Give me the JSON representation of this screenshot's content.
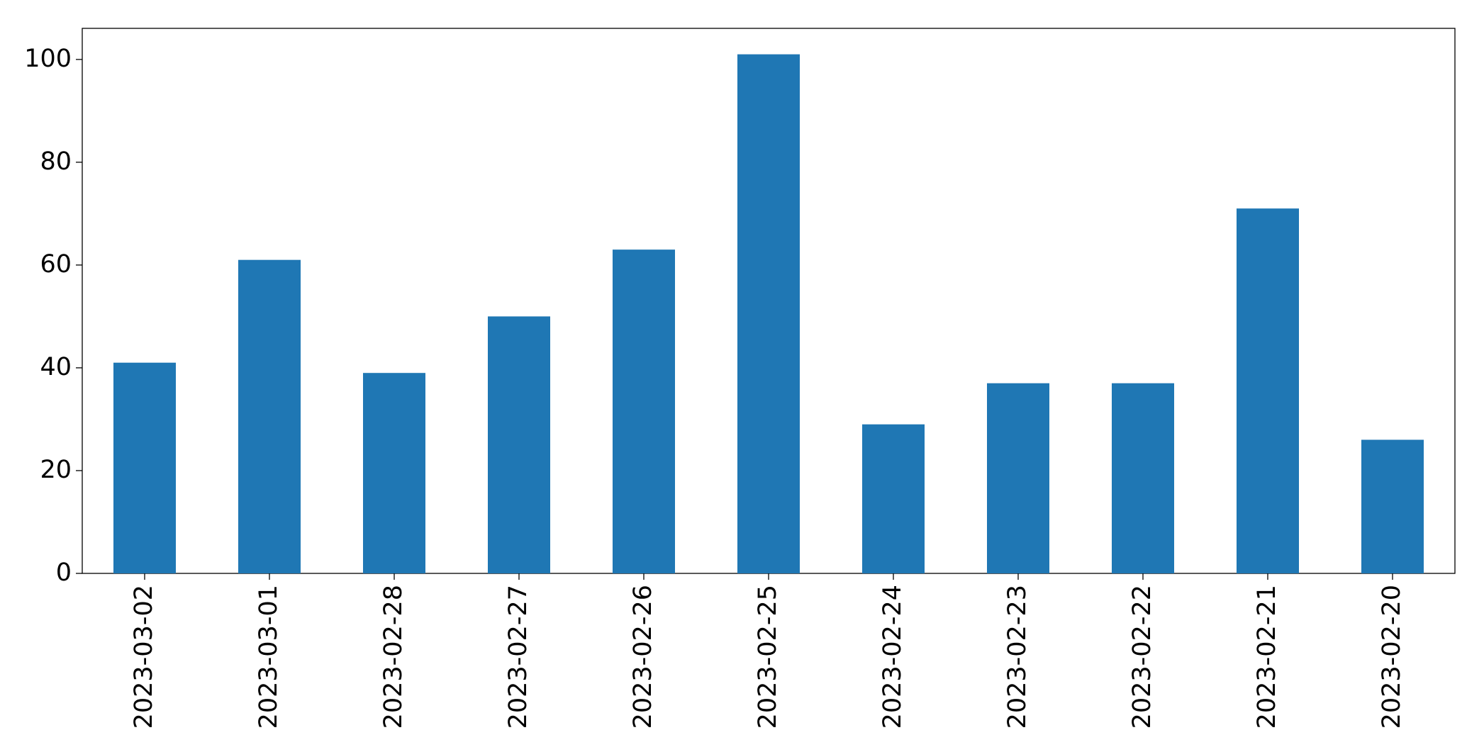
{
  "chart_data": {
    "type": "bar",
    "categories": [
      "2023-03-02",
      "2023-03-01",
      "2023-02-28",
      "2023-02-27",
      "2023-02-26",
      "2023-02-25",
      "2023-02-24",
      "2023-02-23",
      "2023-02-22",
      "2023-02-21",
      "2023-02-20"
    ],
    "values": [
      41,
      61,
      39,
      50,
      63,
      101,
      29,
      37,
      37,
      71,
      26
    ],
    "color": "#1f77b4",
    "ylim": [
      0,
      106.05
    ],
    "yticks": [
      0,
      20,
      40,
      60,
      80,
      100
    ],
    "grid": false
  }
}
